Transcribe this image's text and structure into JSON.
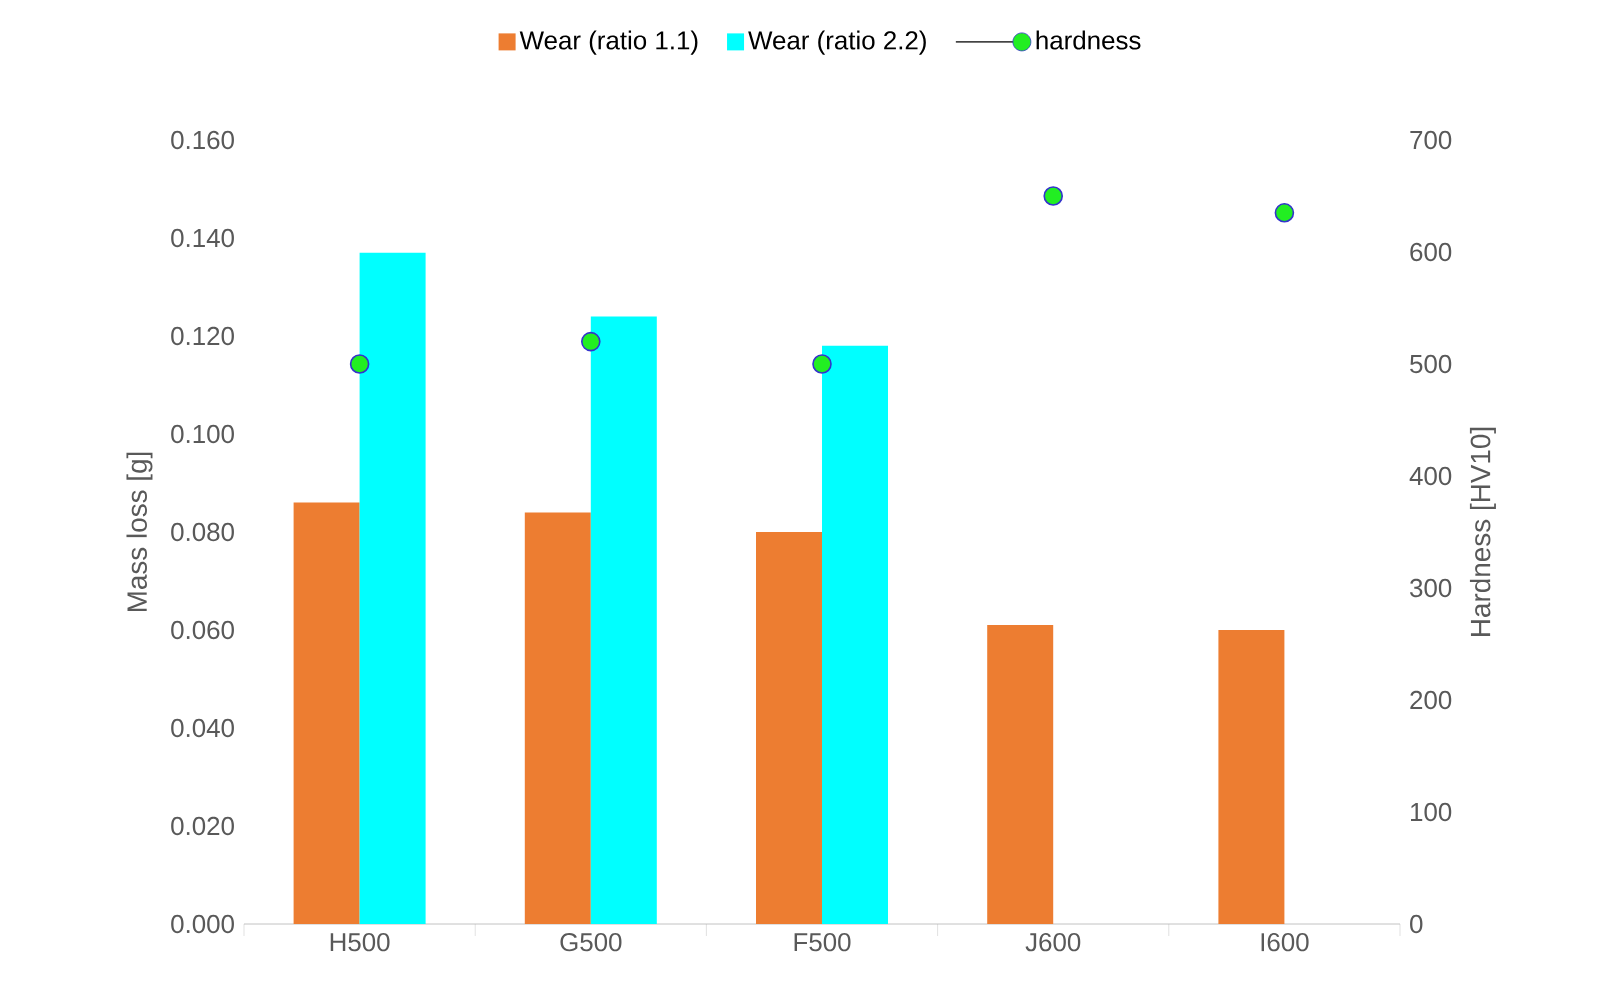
{
  "chart_data": {
    "type": "bar",
    "categories": [
      "H500",
      "G500",
      "F500",
      "J600",
      "I600"
    ],
    "series": [
      {
        "name": "Wear (ratio 1.1)",
        "color": "#ed7d31",
        "values": [
          0.086,
          0.084,
          0.08,
          0.061,
          0.06
        ]
      },
      {
        "name": "Wear (ratio 2.2)",
        "color": "#00ffff",
        "values": [
          0.137,
          0.124,
          0.118,
          null,
          null
        ]
      },
      {
        "name": "hardness",
        "type": "scatter",
        "axis": "y2",
        "marker": "circle",
        "color": "#22ee22",
        "x": [
          "H500",
          "G500",
          "F500",
          "J600",
          "I600"
        ],
        "values": [
          500,
          520,
          500,
          650,
          635
        ]
      }
    ],
    "ylabel": "Mass loss [g]",
    "y2label": "Hardness [HV10]",
    "ylim": [
      0,
      0.16
    ],
    "yticks": [
      {
        "value": 0,
        "label": "0.000"
      },
      {
        "value": 0.02,
        "label": "0.020"
      },
      {
        "value": 0.04,
        "label": "0.040"
      },
      {
        "value": 0.06,
        "label": "0.060"
      },
      {
        "value": 0.08,
        "label": "0.080"
      },
      {
        "value": 0.1,
        "label": "0.100"
      },
      {
        "value": 0.12,
        "label": "0.120"
      },
      {
        "value": 0.14,
        "label": "0.140"
      },
      {
        "value": 0.16,
        "label": "0.160"
      }
    ],
    "y2lim": [
      0,
      700
    ],
    "y2ticks": [
      0,
      100,
      200,
      300,
      400,
      500,
      600,
      700
    ],
    "legend": "top"
  }
}
